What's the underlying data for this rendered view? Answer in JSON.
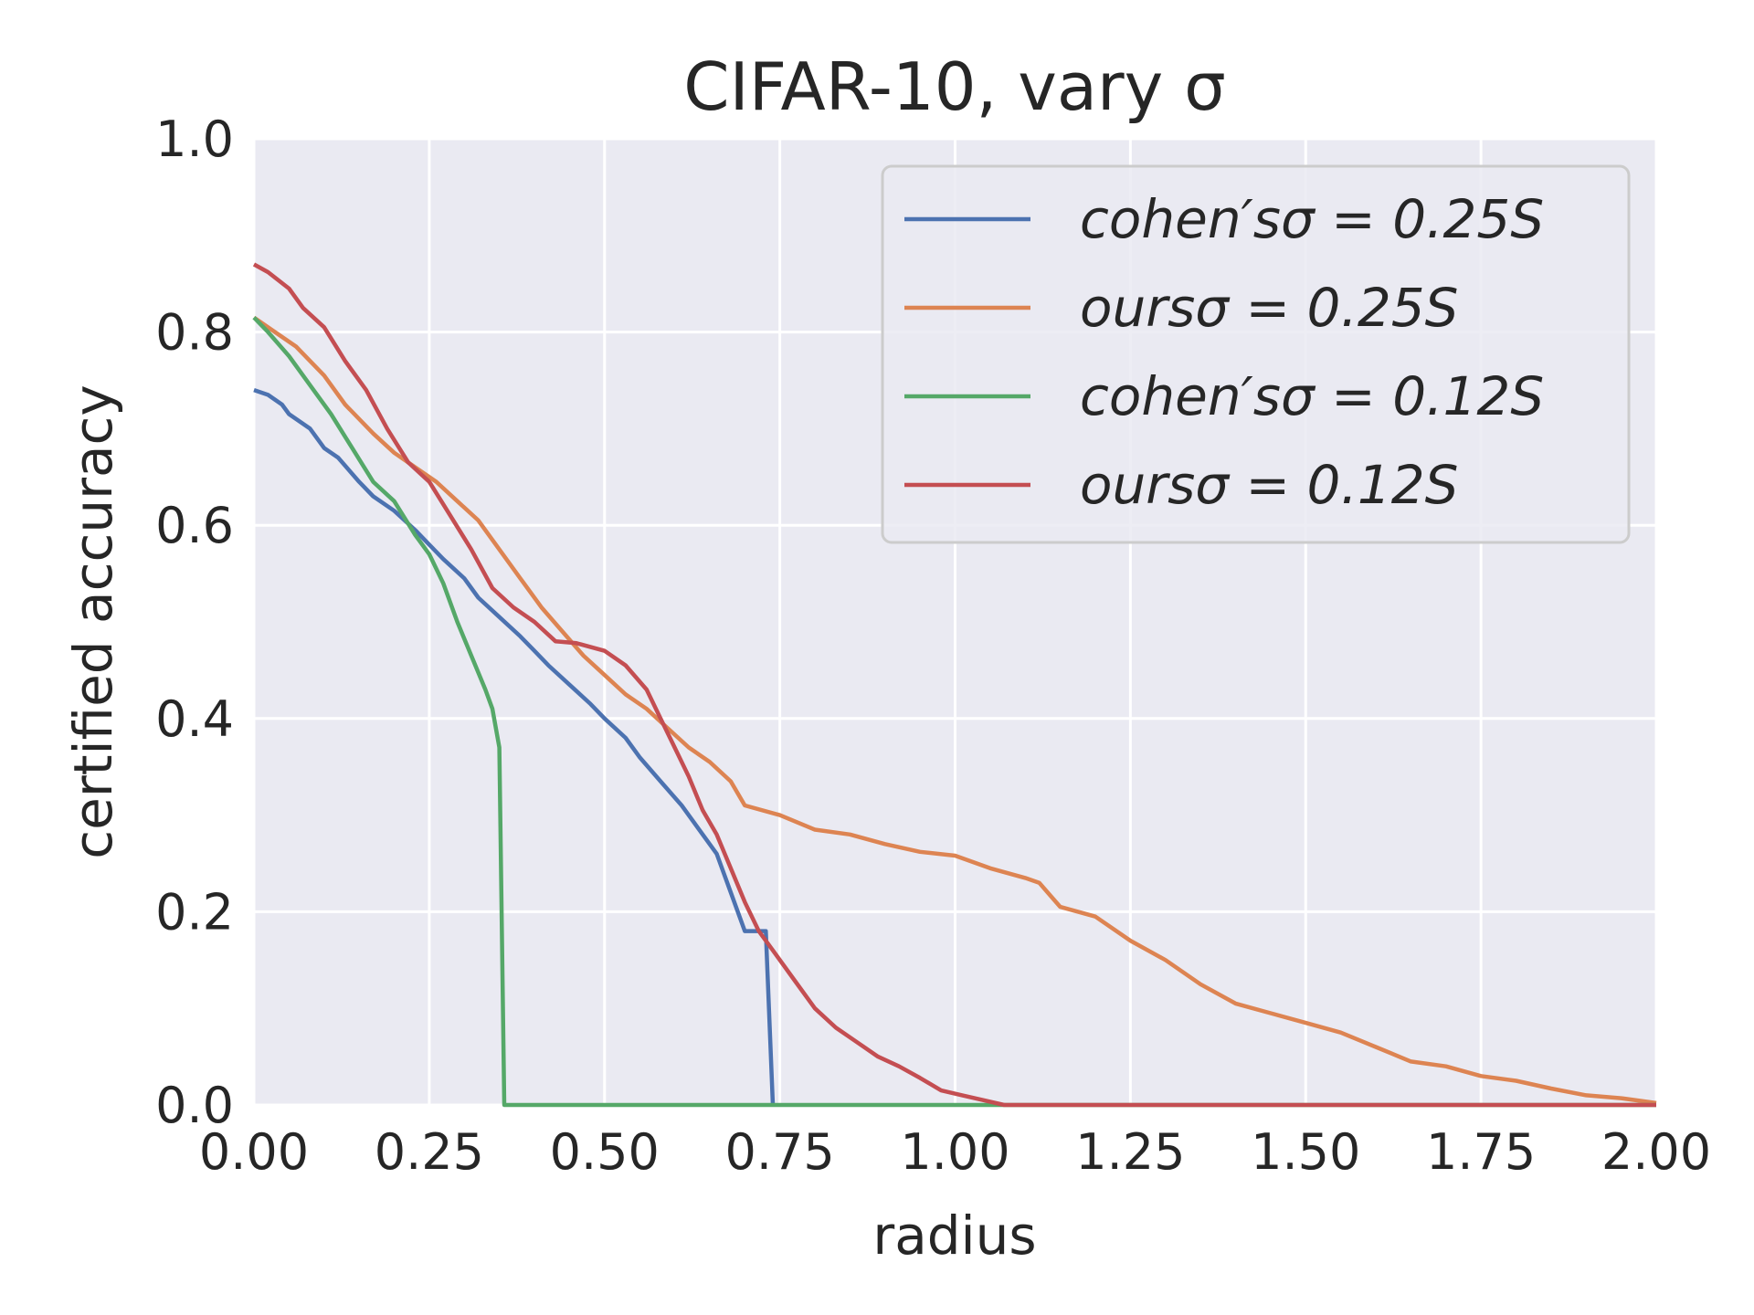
{
  "chart_data": {
    "type": "line",
    "title": "CIFAR-10, vary σ",
    "xlabel": "radius",
    "ylabel": "certified accuracy",
    "xlim": [
      0,
      2
    ],
    "ylim": [
      0,
      1
    ],
    "x_ticks": [
      "0.00",
      "0.25",
      "0.50",
      "0.75",
      "1.00",
      "1.25",
      "1.50",
      "1.75",
      "2.00"
    ],
    "y_ticks": [
      "0.0",
      "0.2",
      "0.4",
      "0.6",
      "0.8",
      "1.0"
    ],
    "grid": true,
    "legend_position": "top-right",
    "background": "#eaeaf2",
    "series": [
      {
        "name": "cohen′sσ = 0.25S",
        "color": "#4c72b0",
        "points": [
          [
            0.0,
            0.74
          ],
          [
            0.02,
            0.735
          ],
          [
            0.04,
            0.725
          ],
          [
            0.05,
            0.715
          ],
          [
            0.08,
            0.7
          ],
          [
            0.1,
            0.68
          ],
          [
            0.12,
            0.67
          ],
          [
            0.15,
            0.645
          ],
          [
            0.17,
            0.63
          ],
          [
            0.2,
            0.615
          ],
          [
            0.23,
            0.595
          ],
          [
            0.25,
            0.58
          ],
          [
            0.27,
            0.565
          ],
          [
            0.3,
            0.545
          ],
          [
            0.32,
            0.525
          ],
          [
            0.35,
            0.505
          ],
          [
            0.38,
            0.485
          ],
          [
            0.4,
            0.47
          ],
          [
            0.42,
            0.455
          ],
          [
            0.45,
            0.435
          ],
          [
            0.48,
            0.415
          ],
          [
            0.5,
            0.4
          ],
          [
            0.53,
            0.38
          ],
          [
            0.55,
            0.36
          ],
          [
            0.58,
            0.335
          ],
          [
            0.61,
            0.31
          ],
          [
            0.63,
            0.29
          ],
          [
            0.66,
            0.26
          ],
          [
            0.68,
            0.22
          ],
          [
            0.7,
            0.18
          ],
          [
            0.73,
            0.18
          ],
          [
            0.74,
            0.0
          ]
        ]
      },
      {
        "name": "oursσ = 0.25S",
        "color": "#dd8452",
        "points": [
          [
            0.0,
            0.815
          ],
          [
            0.03,
            0.8
          ],
          [
            0.06,
            0.785
          ],
          [
            0.1,
            0.755
          ],
          [
            0.13,
            0.725
          ],
          [
            0.17,
            0.695
          ],
          [
            0.2,
            0.675
          ],
          [
            0.23,
            0.66
          ],
          [
            0.26,
            0.645
          ],
          [
            0.29,
            0.625
          ],
          [
            0.32,
            0.605
          ],
          [
            0.35,
            0.575
          ],
          [
            0.38,
            0.545
          ],
          [
            0.41,
            0.515
          ],
          [
            0.44,
            0.49
          ],
          [
            0.47,
            0.465
          ],
          [
            0.5,
            0.445
          ],
          [
            0.53,
            0.425
          ],
          [
            0.56,
            0.41
          ],
          [
            0.59,
            0.39
          ],
          [
            0.62,
            0.37
          ],
          [
            0.65,
            0.355
          ],
          [
            0.68,
            0.335
          ],
          [
            0.7,
            0.31
          ],
          [
            0.75,
            0.3
          ],
          [
            0.8,
            0.285
          ],
          [
            0.85,
            0.28
          ],
          [
            0.9,
            0.27
          ],
          [
            0.95,
            0.262
          ],
          [
            1.0,
            0.258
          ],
          [
            1.05,
            0.245
          ],
          [
            1.1,
            0.235
          ],
          [
            1.12,
            0.23
          ],
          [
            1.15,
            0.205
          ],
          [
            1.2,
            0.195
          ],
          [
            1.25,
            0.17
          ],
          [
            1.3,
            0.15
          ],
          [
            1.35,
            0.125
          ],
          [
            1.4,
            0.105
          ],
          [
            1.45,
            0.095
          ],
          [
            1.5,
            0.085
          ],
          [
            1.55,
            0.075
          ],
          [
            1.6,
            0.06
          ],
          [
            1.65,
            0.045
          ],
          [
            1.7,
            0.04
          ],
          [
            1.75,
            0.03
          ],
          [
            1.8,
            0.025
          ],
          [
            1.85,
            0.017
          ],
          [
            1.9,
            0.01
          ],
          [
            1.95,
            0.007
          ],
          [
            2.0,
            0.002
          ]
        ]
      },
      {
        "name": "cohen′sσ = 0.12S",
        "color": "#55a868",
        "points": [
          [
            0.0,
            0.815
          ],
          [
            0.02,
            0.8
          ],
          [
            0.05,
            0.775
          ],
          [
            0.08,
            0.745
          ],
          [
            0.11,
            0.715
          ],
          [
            0.14,
            0.68
          ],
          [
            0.17,
            0.645
          ],
          [
            0.2,
            0.625
          ],
          [
            0.23,
            0.59
          ],
          [
            0.25,
            0.57
          ],
          [
            0.27,
            0.54
          ],
          [
            0.29,
            0.5
          ],
          [
            0.31,
            0.465
          ],
          [
            0.33,
            0.43
          ],
          [
            0.34,
            0.41
          ],
          [
            0.35,
            0.37
          ],
          [
            0.357,
            0.0
          ],
          [
            0.5,
            0.0
          ],
          [
            1.0,
            0.0
          ],
          [
            1.5,
            0.0
          ],
          [
            2.0,
            0.0
          ]
        ]
      },
      {
        "name": "oursσ = 0.12S",
        "color": "#c44e52",
        "points": [
          [
            0.0,
            0.87
          ],
          [
            0.02,
            0.862
          ],
          [
            0.05,
            0.845
          ],
          [
            0.07,
            0.825
          ],
          [
            0.1,
            0.805
          ],
          [
            0.13,
            0.77
          ],
          [
            0.16,
            0.74
          ],
          [
            0.19,
            0.7
          ],
          [
            0.22,
            0.665
          ],
          [
            0.25,
            0.645
          ],
          [
            0.28,
            0.61
          ],
          [
            0.31,
            0.575
          ],
          [
            0.34,
            0.535
          ],
          [
            0.37,
            0.515
          ],
          [
            0.4,
            0.5
          ],
          [
            0.43,
            0.48
          ],
          [
            0.46,
            0.478
          ],
          [
            0.5,
            0.47
          ],
          [
            0.53,
            0.455
          ],
          [
            0.56,
            0.43
          ],
          [
            0.58,
            0.4
          ],
          [
            0.6,
            0.37
          ],
          [
            0.62,
            0.34
          ],
          [
            0.64,
            0.305
          ],
          [
            0.66,
            0.28
          ],
          [
            0.68,
            0.245
          ],
          [
            0.7,
            0.21
          ],
          [
            0.72,
            0.18
          ],
          [
            0.74,
            0.16
          ],
          [
            0.77,
            0.13
          ],
          [
            0.8,
            0.1
          ],
          [
            0.83,
            0.08
          ],
          [
            0.86,
            0.065
          ],
          [
            0.89,
            0.05
          ],
          [
            0.92,
            0.04
          ],
          [
            0.95,
            0.028
          ],
          [
            0.98,
            0.015
          ],
          [
            1.01,
            0.01
          ],
          [
            1.04,
            0.005
          ],
          [
            1.07,
            0.0
          ],
          [
            1.5,
            0.0
          ],
          [
            2.0,
            0.0
          ]
        ]
      }
    ]
  }
}
